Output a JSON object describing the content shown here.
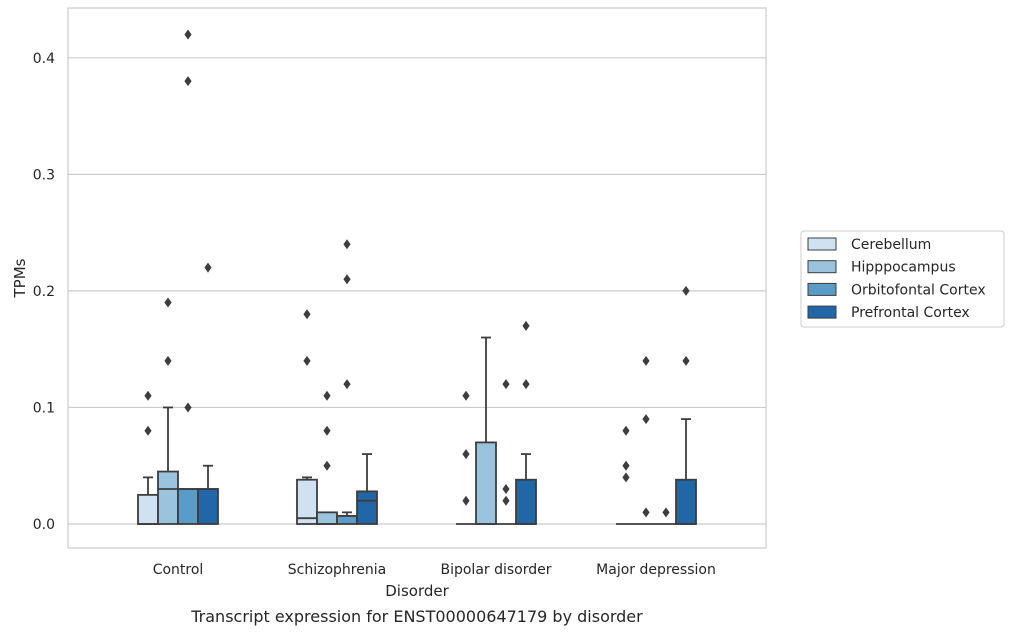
{
  "chart_data": {
    "type": "boxplot",
    "xlabel": "Disorder",
    "ylabel": "TPMs",
    "caption": "Transcript expression for ENST00000647179 by disorder",
    "ylim": [
      -0.02,
      0.44
    ],
    "yticks": [
      0.0,
      0.1,
      0.2,
      0.3,
      0.4
    ],
    "ytick_labels": [
      "0.0",
      "0.1",
      "0.2",
      "0.3",
      "0.4"
    ],
    "grid": "horizontal",
    "legend_position": "right",
    "categories": [
      "Control",
      "Schizophrenia",
      "Bipolar disorder",
      "Major depression"
    ],
    "series": [
      {
        "name": "Cerebellum",
        "color": "#d0e2f2",
        "boxes": [
          {
            "q1": 0.0,
            "median": 0.0,
            "q3": 0.025,
            "whislo": 0.0,
            "whishi": 0.04,
            "outliers": [
              0.08,
              0.11
            ]
          },
          {
            "q1": 0.0,
            "median": 0.005,
            "q3": 0.038,
            "whislo": 0.0,
            "whishi": 0.04,
            "outliers": [
              0.14,
              0.18
            ]
          },
          {
            "q1": 0.0,
            "median": 0.0,
            "q3": 0.0,
            "whislo": 0.0,
            "whishi": 0.0,
            "outliers": [
              0.02,
              0.06,
              0.11
            ]
          },
          {
            "q1": 0.0,
            "median": 0.0,
            "q3": 0.0,
            "whislo": 0.0,
            "whishi": 0.0,
            "outliers": [
              0.04,
              0.05,
              0.08
            ]
          }
        ]
      },
      {
        "name": "Hipppocampus",
        "color": "#9ac3de",
        "boxes": [
          {
            "q1": 0.0,
            "median": 0.03,
            "q3": 0.045,
            "whislo": 0.0,
            "whishi": 0.1,
            "outliers": [
              0.14,
              0.19
            ]
          },
          {
            "q1": 0.0,
            "median": 0.0,
            "q3": 0.01,
            "whislo": 0.0,
            "whishi": 0.01,
            "outliers": [
              0.05,
              0.08,
              0.11
            ]
          },
          {
            "q1": 0.0,
            "median": 0.0,
            "q3": 0.07,
            "whislo": 0.0,
            "whishi": 0.16,
            "outliers": []
          },
          {
            "q1": 0.0,
            "median": 0.0,
            "q3": 0.0,
            "whislo": 0.0,
            "whishi": 0.0,
            "outliers": [
              0.01,
              0.09,
              0.14
            ]
          }
        ]
      },
      {
        "name": "Orbitofontal Cortex",
        "color": "#5a9bc8",
        "boxes": [
          {
            "q1": 0.0,
            "median": 0.03,
            "q3": 0.03,
            "whislo": 0.0,
            "whishi": 0.03,
            "outliers": [
              0.1,
              0.38,
              0.42
            ]
          },
          {
            "q1": 0.0,
            "median": 0.007,
            "q3": 0.007,
            "whislo": 0.0,
            "whishi": 0.01,
            "outliers": [
              0.12,
              0.21,
              0.24
            ]
          },
          {
            "q1": 0.0,
            "median": 0.0,
            "q3": 0.0,
            "whislo": 0.0,
            "whishi": 0.0,
            "outliers": [
              0.02,
              0.03,
              0.12
            ]
          },
          {
            "q1": 0.0,
            "median": 0.0,
            "q3": 0.0,
            "whislo": 0.0,
            "whishi": 0.0,
            "outliers": [
              0.01
            ]
          }
        ]
      },
      {
        "name": "Prefrontal Cortex",
        "color": "#2166a6",
        "boxes": [
          {
            "q1": 0.0,
            "median": 0.03,
            "q3": 0.03,
            "whislo": 0.0,
            "whishi": 0.05,
            "outliers": [
              0.22
            ]
          },
          {
            "q1": 0.0,
            "median": 0.02,
            "q3": 0.028,
            "whislo": 0.0,
            "whishi": 0.06,
            "outliers": []
          },
          {
            "q1": 0.0,
            "median": 0.0,
            "q3": 0.038,
            "whislo": 0.0,
            "whishi": 0.06,
            "outliers": [
              0.12,
              0.17
            ]
          },
          {
            "q1": 0.0,
            "median": 0.0,
            "q3": 0.038,
            "whislo": 0.0,
            "whishi": 0.09,
            "outliers": [
              0.14,
              0.2
            ]
          }
        ]
      }
    ]
  }
}
